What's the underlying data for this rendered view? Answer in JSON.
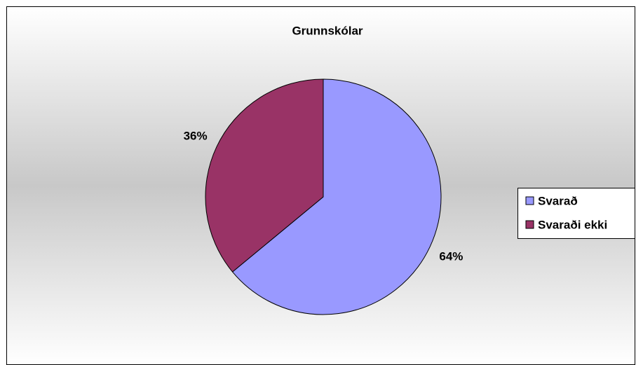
{
  "chart_data": {
    "type": "pie",
    "title": "Grunnskólar",
    "categories": [
      "Svarað",
      "Svaraði ekki"
    ],
    "values": [
      64,
      36
    ],
    "value_labels": [
      "64%",
      "36%"
    ],
    "colors": [
      "#9999ff",
      "#993366"
    ],
    "legend": "right"
  }
}
